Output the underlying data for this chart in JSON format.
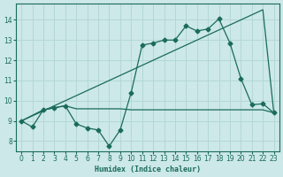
{
  "xlabel": "Humidex (Indice chaleur)",
  "xlim": [
    -0.5,
    23.5
  ],
  "ylim": [
    7.5,
    14.8
  ],
  "bg_color": "#cce8e8",
  "line_color": "#1a6b5a",
  "grid_color": "#b0d4d4",
  "line1_x": [
    0,
    1,
    2,
    3,
    4,
    5,
    6,
    7,
    8,
    9,
    10,
    11,
    12,
    13,
    14,
    15,
    16,
    17,
    18,
    19,
    20,
    21,
    22,
    23
  ],
  "line1_y": [
    9.0,
    8.7,
    9.55,
    9.65,
    9.75,
    8.85,
    8.65,
    8.55,
    7.75,
    8.55,
    10.4,
    12.75,
    12.85,
    13.0,
    13.0,
    13.7,
    13.45,
    13.55,
    14.05,
    12.85,
    11.1,
    9.8,
    9.85,
    9.4
  ],
  "line2_x": [
    0,
    2,
    3,
    4,
    5,
    6,
    7,
    8,
    9,
    10,
    11,
    12,
    13,
    14,
    15,
    16,
    17,
    18,
    19,
    20,
    21,
    22,
    23
  ],
  "line2_y": [
    9.0,
    9.55,
    9.65,
    9.75,
    9.6,
    9.6,
    9.6,
    9.6,
    9.6,
    9.55,
    9.55,
    9.55,
    9.55,
    9.55,
    9.55,
    9.55,
    9.55,
    9.55,
    9.55,
    9.55,
    9.55,
    9.55,
    9.4
  ],
  "line3_x": [
    0,
    22,
    23
  ],
  "line3_y": [
    9.0,
    14.5,
    9.4
  ],
  "yticks": [
    8,
    9,
    10,
    11,
    12,
    13,
    14
  ],
  "xticks": [
    0,
    1,
    2,
    3,
    4,
    5,
    6,
    7,
    8,
    9,
    10,
    11,
    12,
    13,
    14,
    15,
    16,
    17,
    18,
    19,
    20,
    21,
    22,
    23
  ]
}
